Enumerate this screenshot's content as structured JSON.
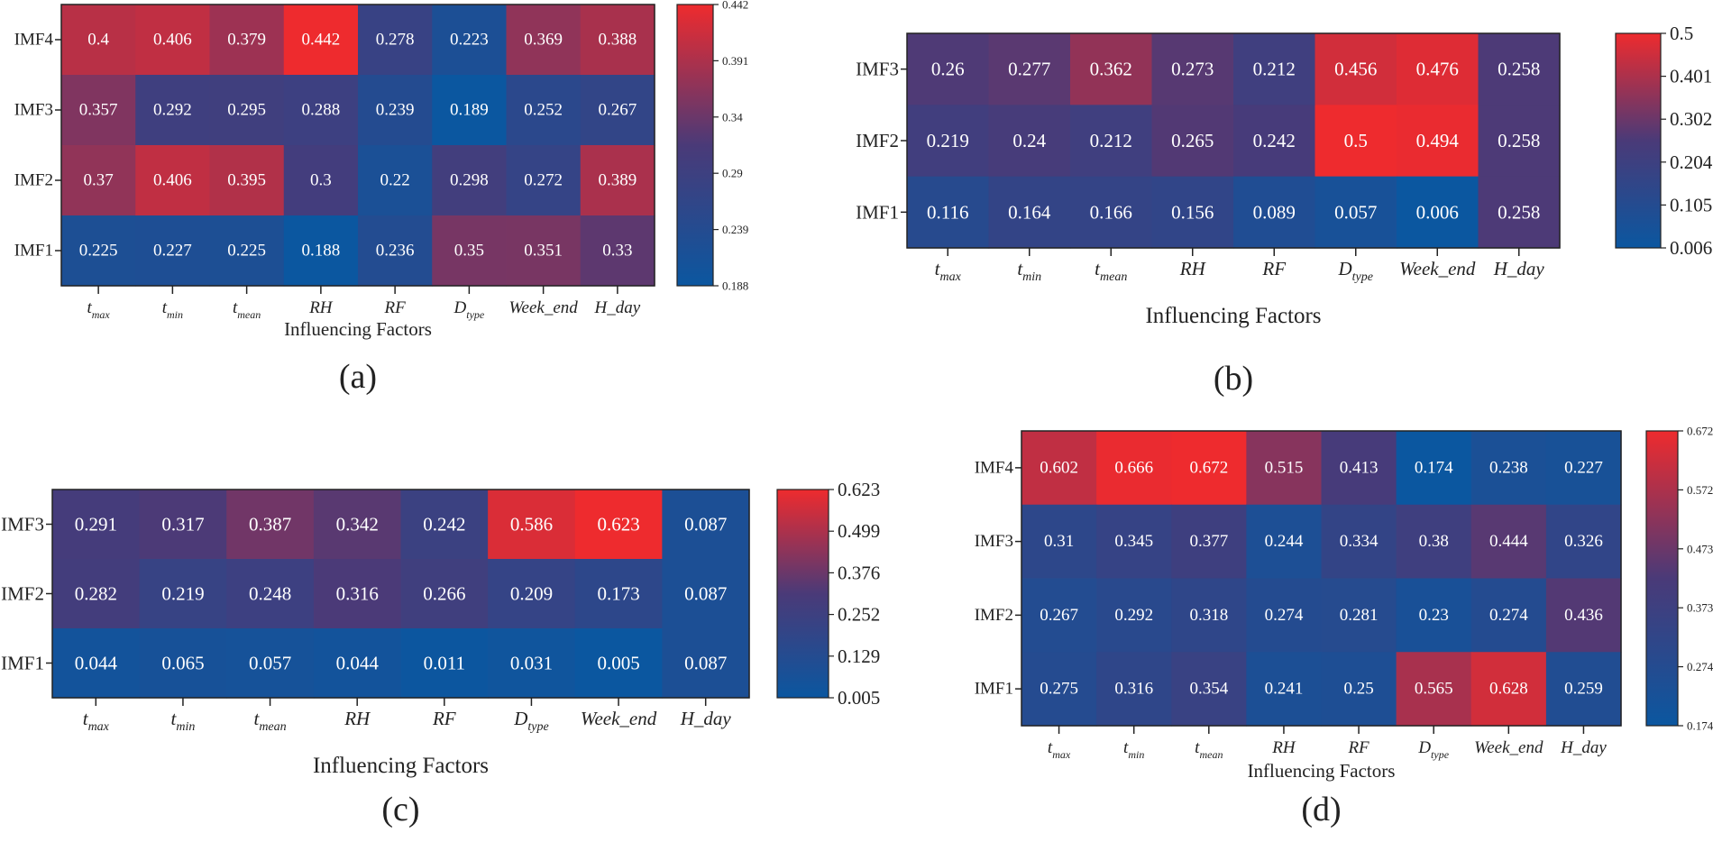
{
  "colors": {
    "low": "#0b57a0",
    "mid": "#4a3a78",
    "high": "#ee2b2e"
  },
  "chart_data": [
    {
      "type": "heatmap",
      "panel_label": "(a)",
      "xlabel": "Influencing Factors",
      "x_categories": [
        {
          "base": "t",
          "sub": "max",
          "italic": true
        },
        {
          "base": "t",
          "sub": "min",
          "italic": true
        },
        {
          "base": "t",
          "sub": "mean",
          "italic": true
        },
        {
          "base": "RH",
          "sub": "",
          "italic": true
        },
        {
          "base": "RF",
          "sub": "",
          "italic": true
        },
        {
          "base": "D",
          "sub": "type",
          "italic": true
        },
        {
          "base": "Week_end",
          "sub": "",
          "italic": true
        },
        {
          "base": "H_day",
          "sub": "",
          "italic": true
        }
      ],
      "y_categories": [
        "IMF4",
        "IMF3",
        "IMF2",
        "IMF1"
      ],
      "values": [
        [
          "0.4",
          "0.406",
          "0.379",
          "0.442",
          "0.278",
          "0.223",
          "0.369",
          "0.388"
        ],
        [
          "0.357",
          "0.292",
          "0.295",
          "0.288",
          "0.239",
          "0.189",
          "0.252",
          "0.267"
        ],
        [
          "0.37",
          "0.406",
          "0.395",
          "0.3",
          "0.22",
          "0.298",
          "0.272",
          "0.389"
        ],
        [
          "0.225",
          "0.227",
          "0.225",
          "0.188",
          "0.236",
          "0.35",
          "0.351",
          "0.33"
        ]
      ],
      "colorbar": {
        "min": 0.188,
        "max": 0.442,
        "ticks": [
          "0.442",
          "0.391",
          "0.34",
          "0.29",
          "0.239",
          "0.188"
        ]
      }
    },
    {
      "type": "heatmap",
      "panel_label": "(b)",
      "xlabel": "Influencing Factors",
      "x_categories": [
        {
          "base": "t",
          "sub": "max",
          "italic": true
        },
        {
          "base": "t",
          "sub": "min",
          "italic": true
        },
        {
          "base": "t",
          "sub": "mean",
          "italic": true
        },
        {
          "base": "RH",
          "sub": "",
          "italic": true
        },
        {
          "base": "RF",
          "sub": "",
          "italic": true
        },
        {
          "base": "D",
          "sub": "type",
          "italic": true
        },
        {
          "base": "Week_end",
          "sub": "",
          "italic": true
        },
        {
          "base": "H_day",
          "sub": "",
          "italic": true
        }
      ],
      "y_categories": [
        "IMF3",
        "IMF2",
        "IMF1"
      ],
      "values": [
        [
          "0.26",
          "0.277",
          "0.362",
          "0.273",
          "0.212",
          "0.456",
          "0.476",
          "0.258"
        ],
        [
          "0.219",
          "0.24",
          "0.212",
          "0.265",
          "0.242",
          "0.5",
          "0.494",
          "0.258"
        ],
        [
          "0.116",
          "0.164",
          "0.166",
          "0.156",
          "0.089",
          "0.057",
          "0.006",
          "0.258"
        ]
      ],
      "colorbar": {
        "min": 0.006,
        "max": 0.5,
        "ticks": [
          "0.5",
          "0.401",
          "0.302",
          "0.204",
          "0.105",
          "0.006"
        ]
      }
    },
    {
      "type": "heatmap",
      "panel_label": "(c)",
      "xlabel": "Influencing Factors",
      "x_categories": [
        {
          "base": "t",
          "sub": "max",
          "italic": true
        },
        {
          "base": "t",
          "sub": "min",
          "italic": true
        },
        {
          "base": "t",
          "sub": "mean",
          "italic": true
        },
        {
          "base": "RH",
          "sub": "",
          "italic": true
        },
        {
          "base": "RF",
          "sub": "",
          "italic": true
        },
        {
          "base": "D",
          "sub": "type",
          "italic": true
        },
        {
          "base": "Week_end",
          "sub": "",
          "italic": true
        },
        {
          "base": "H_day",
          "sub": "",
          "italic": true
        }
      ],
      "y_categories": [
        "IMF3",
        "IMF2",
        "IMF1"
      ],
      "values": [
        [
          "0.291",
          "0.317",
          "0.387",
          "0.342",
          "0.242",
          "0.586",
          "0.623",
          "0.087"
        ],
        [
          "0.282",
          "0.219",
          "0.248",
          "0.316",
          "0.266",
          "0.209",
          "0.173",
          "0.087"
        ],
        [
          "0.044",
          "0.065",
          "0.057",
          "0.044",
          "0.011",
          "0.031",
          "0.005",
          "0.087"
        ]
      ],
      "colorbar": {
        "min": 0.005,
        "max": 0.623,
        "ticks": [
          "0.623",
          "0.499",
          "0.376",
          "0.252",
          "0.129",
          "0.005"
        ]
      }
    },
    {
      "type": "heatmap",
      "panel_label": "(d)",
      "xlabel": "Influencing Factors",
      "x_categories": [
        {
          "base": "t",
          "sub": "max",
          "italic": true
        },
        {
          "base": "t",
          "sub": "min",
          "italic": true
        },
        {
          "base": "t",
          "sub": "mean",
          "italic": true
        },
        {
          "base": "RH",
          "sub": "",
          "italic": true
        },
        {
          "base": "RF",
          "sub": "",
          "italic": true
        },
        {
          "base": "D",
          "sub": "type",
          "italic": true
        },
        {
          "base": "Week_end",
          "sub": "",
          "italic": true
        },
        {
          "base": "H_day",
          "sub": "",
          "italic": true
        }
      ],
      "y_categories": [
        "IMF4",
        "IMF3",
        "IMF2",
        "IMF1"
      ],
      "values": [
        [
          "0.602",
          "0.666",
          "0.672",
          "0.515",
          "0.413",
          "0.174",
          "0.238",
          "0.227"
        ],
        [
          "0.31",
          "0.345",
          "0.377",
          "0.244",
          "0.334",
          "0.38",
          "0.444",
          "0.326"
        ],
        [
          "0.267",
          "0.292",
          "0.318",
          "0.274",
          "0.281",
          "0.23",
          "0.274",
          "0.436"
        ],
        [
          "0.275",
          "0.316",
          "0.354",
          "0.241",
          "0.25",
          "0.565",
          "0.628",
          "0.259"
        ]
      ],
      "colorbar": {
        "min": 0.174,
        "max": 0.672,
        "ticks": [
          "0.672",
          "0.572",
          "0.473",
          "0.373",
          "0.274",
          "0.174"
        ]
      }
    }
  ]
}
